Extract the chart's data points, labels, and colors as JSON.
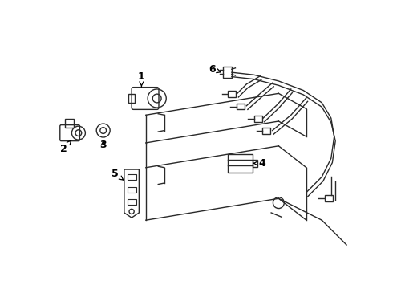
{
  "bg_color": "#ffffff",
  "line_color": "#2a2a2a",
  "label_color": "#000000",
  "fig_width": 4.9,
  "fig_height": 3.6,
  "dpi": 100
}
